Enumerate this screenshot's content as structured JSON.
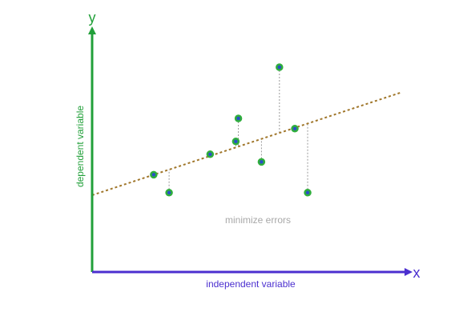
{
  "diagram": {
    "y_axis_letter": "y",
    "x_axis_letter": "x",
    "y_axis_label": "dependent variable",
    "x_axis_label": "independent variable",
    "annotation": "minimize errors"
  },
  "colors": {
    "y_axis": "#22a03a",
    "x_axis": "#4b2fcf",
    "regression_line": "#a0762a",
    "residual_line": "#9a9a9a",
    "point_ring": "#2fae3c",
    "point_fill": "#2a4fc8",
    "annotation_text": "#a8a8a8"
  },
  "chart_data": {
    "type": "scatter",
    "x": [
      3.0,
      3.3,
      4.1,
      4.6,
      4.65,
      5.1,
      5.45,
      5.75,
      6.0
    ],
    "y": [
      1.9,
      1.55,
      2.3,
      2.55,
      3.0,
      2.15,
      4.0,
      2.8,
      1.55
    ],
    "fit_line": {
      "slope": 0.3333,
      "intercept": 0.9
    },
    "xlim": [
      1.8,
      8.2
    ],
    "ylim": [
      0,
      5.0
    ],
    "show_residuals": true,
    "grid": false,
    "legend": "none"
  }
}
